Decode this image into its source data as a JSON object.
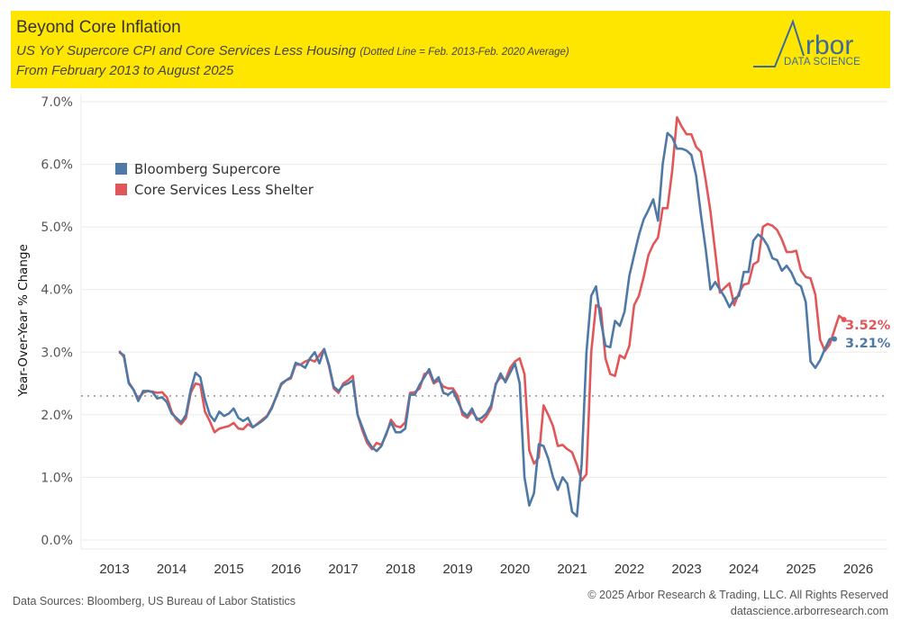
{
  "header": {
    "title": "Beyond Core Inflation",
    "subtitle_main": "US YoY Supercore CPI and Core Services Less Housing",
    "subtitle_note": "(Dotted Line = Feb. 2013-Feb. 2020 Average)",
    "subtitle2": "From February 2013 to August 2025",
    "logo_word": "rbor",
    "logo_tagline": "DATA SCIENCE",
    "background": "#ffe600"
  },
  "footer": {
    "sources": "Data Sources: Bloomberg, US Bureau of Labor Statistics",
    "copyright": "© 2025 Arbor Research & Trading, LLC. All Rights Reserved",
    "url": "datascience.arborresearch.com"
  },
  "chart_data": {
    "type": "line",
    "title": "Beyond Core Inflation",
    "xlabel": "",
    "ylabel": "Year-Over-Year % Change",
    "ylim": [
      0,
      7
    ],
    "xlim": [
      2012.9,
      2026.3
    ],
    "y_ticks": [
      "0.0%",
      "1.0%",
      "2.0%",
      "3.0%",
      "4.0%",
      "5.0%",
      "6.0%",
      "7.0%"
    ],
    "x_ticks": [
      "2013",
      "2014",
      "2015",
      "2016",
      "2017",
      "2018",
      "2019",
      "2020",
      "2021",
      "2022",
      "2023",
      "2024",
      "2025",
      "2026"
    ],
    "grid": true,
    "legend_position": "top-left",
    "reference_line": {
      "value": 2.3,
      "style": "dotted",
      "label": "Feb. 2013-Feb. 2020 Average"
    },
    "start": "2013-02",
    "frequency": "monthly",
    "series": [
      {
        "name": "Bloomberg Supercore",
        "color": "#4e79a7",
        "end_label": "3.21%",
        "values": [
          3.0,
          2.95,
          2.5,
          2.4,
          2.22,
          2.38,
          2.38,
          2.36,
          2.26,
          2.28,
          2.2,
          2.02,
          1.95,
          1.88,
          2.0,
          2.4,
          2.67,
          2.6,
          2.25,
          2.0,
          1.9,
          2.05,
          1.98,
          2.02,
          2.1,
          1.95,
          1.9,
          1.95,
          1.8,
          1.85,
          1.9,
          1.97,
          2.1,
          2.3,
          2.5,
          2.55,
          2.6,
          2.83,
          2.8,
          2.75,
          2.9,
          3.0,
          2.82,
          3.05,
          2.8,
          2.45,
          2.38,
          2.47,
          2.5,
          2.55,
          2.0,
          1.8,
          1.6,
          1.48,
          1.42,
          1.5,
          1.7,
          1.88,
          1.72,
          1.72,
          1.78,
          2.32,
          2.32,
          2.48,
          2.6,
          2.73,
          2.52,
          2.6,
          2.35,
          2.32,
          2.38,
          2.22,
          2.05,
          1.98,
          2.1,
          1.92,
          1.95,
          2.02,
          2.15,
          2.48,
          2.66,
          2.52,
          2.67,
          2.82,
          2.5,
          1.0,
          0.55,
          0.75,
          1.53,
          1.5,
          1.3,
          1.0,
          0.8,
          1.0,
          0.9,
          0.45,
          0.38,
          1.22,
          3.0,
          3.9,
          4.05,
          3.5,
          3.1,
          3.08,
          3.5,
          3.42,
          3.65,
          4.22,
          4.55,
          4.87,
          5.12,
          5.27,
          5.44,
          5.1,
          6.0,
          6.5,
          6.43,
          6.25,
          6.25,
          6.22,
          6.15,
          5.82,
          5.2,
          4.65,
          4.0,
          4.12,
          4.0,
          3.88,
          3.72,
          3.85,
          3.9,
          4.28,
          4.28,
          4.78,
          4.88,
          4.82,
          4.7,
          4.5,
          4.47,
          4.3,
          4.38,
          4.27,
          4.1,
          4.05,
          3.8,
          2.85,
          2.75,
          2.87,
          3.05,
          3.21,
          3.21
        ]
      },
      {
        "name": "Core Services Less Shelter",
        "color": "#e15759",
        "end_label": "3.52%",
        "values": [
          3.02,
          2.92,
          2.52,
          2.4,
          2.25,
          2.35,
          2.38,
          2.37,
          2.35,
          2.36,
          2.28,
          2.05,
          1.92,
          1.85,
          1.95,
          2.35,
          2.5,
          2.48,
          2.05,
          1.9,
          1.72,
          1.78,
          1.8,
          1.82,
          1.87,
          1.78,
          1.77,
          1.85,
          1.8,
          1.86,
          1.92,
          1.98,
          2.12,
          2.3,
          2.48,
          2.55,
          2.58,
          2.8,
          2.8,
          2.85,
          2.88,
          2.85,
          2.95,
          3.05,
          2.78,
          2.42,
          2.35,
          2.5,
          2.55,
          2.62,
          2.0,
          1.75,
          1.55,
          1.45,
          1.55,
          1.52,
          1.68,
          1.92,
          1.82,
          1.8,
          1.88,
          2.35,
          2.36,
          2.42,
          2.65,
          2.68,
          2.5,
          2.55,
          2.45,
          2.42,
          2.42,
          2.3,
          2.0,
          1.95,
          2.05,
          1.95,
          1.88,
          1.97,
          2.1,
          2.5,
          2.6,
          2.55,
          2.75,
          2.85,
          2.9,
          2.65,
          1.43,
          1.22,
          1.32,
          2.15,
          2.0,
          1.82,
          1.5,
          1.52,
          1.45,
          1.4,
          1.2,
          0.95,
          1.05,
          3.0,
          3.75,
          3.7,
          2.9,
          2.65,
          2.62,
          2.95,
          2.9,
          3.1,
          3.75,
          3.9,
          4.2,
          4.55,
          4.72,
          4.83,
          5.3,
          5.3,
          5.9,
          6.75,
          6.6,
          6.48,
          6.48,
          6.28,
          6.2,
          5.75,
          5.25,
          4.6,
          3.95,
          4.03,
          4.1,
          3.75,
          3.95,
          4.08,
          4.1,
          4.4,
          4.45,
          5.0,
          5.05,
          5.02,
          4.95,
          4.8,
          4.6,
          4.6,
          4.62,
          4.3,
          4.2,
          4.18,
          3.92,
          3.2,
          3.02,
          3.12,
          3.35,
          3.58,
          3.52
        ]
      }
    ]
  }
}
